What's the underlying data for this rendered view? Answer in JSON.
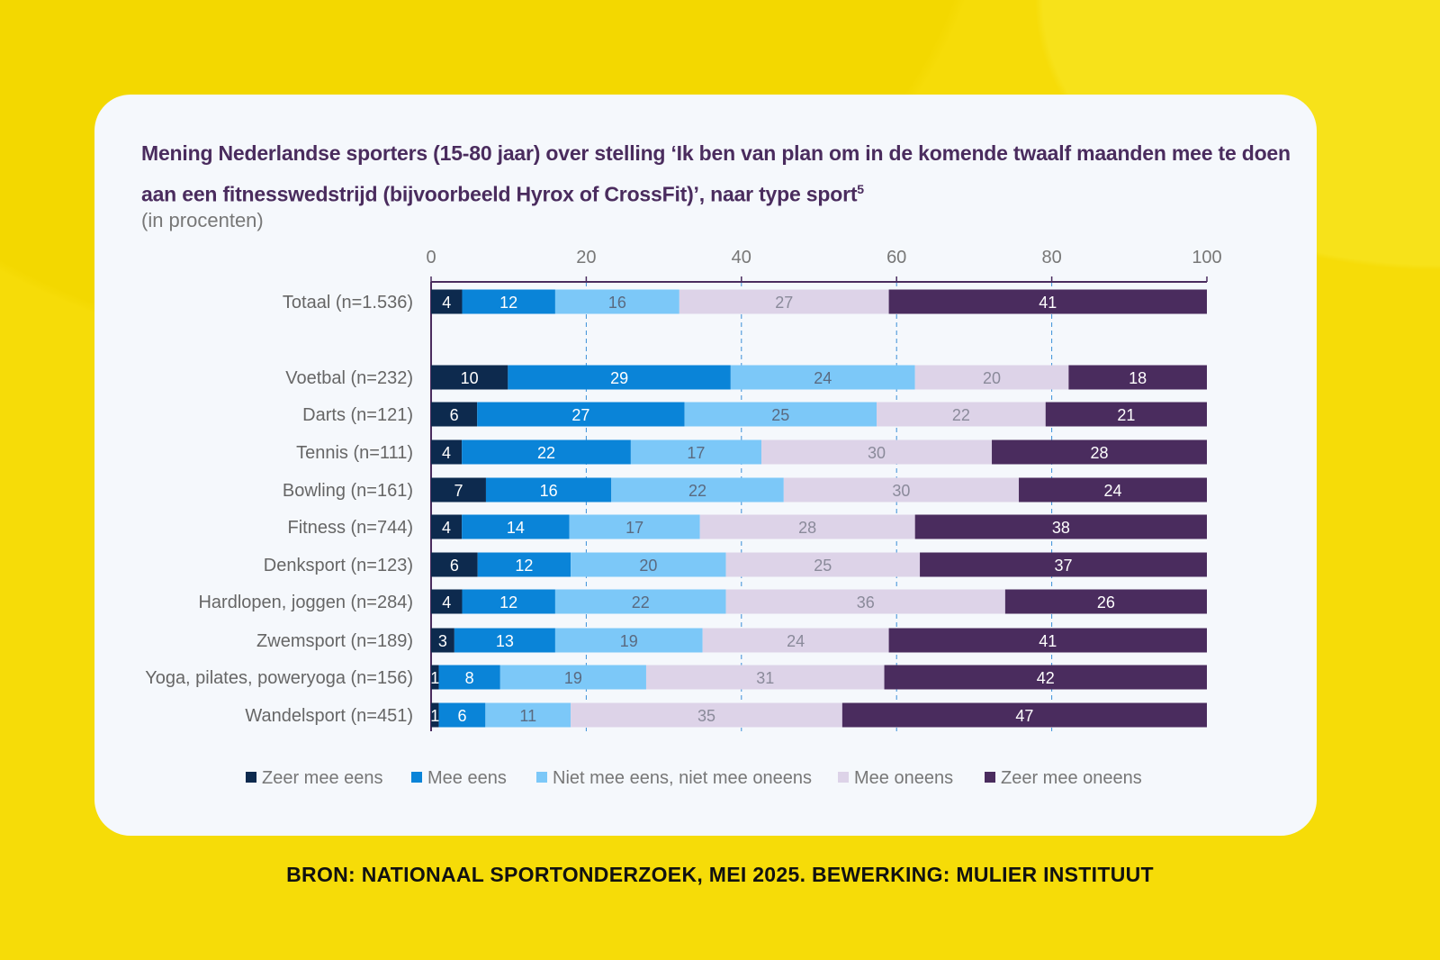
{
  "chart_data": {
    "type": "bar",
    "orientation": "horizontal",
    "stacked": true,
    "title": "Mening Nederlandse sporters (15-80 jaar) over stelling ‘Ik ben van plan om in de komende twaalf maanden mee te doen aan een fitnesswedstrijd (bijvoorbeeld Hyrox of CrossFit)’, naar type sport",
    "title_footnote": "5",
    "subtitle": "(in procenten)",
    "xlim": [
      0,
      100
    ],
    "xticks": [
      "0",
      "20",
      "40",
      "60",
      "80",
      "100"
    ],
    "grid": "vertical dashed",
    "legend_position": "bottom",
    "categories": [
      "Totaal (n=1.536)",
      "Voetbal (n=232)",
      "Darts (n=121)",
      "Tennis (n=111)",
      "Bowling (n=161)",
      "Fitness (n=744)",
      "Denksport (n=123)",
      "Hardlopen, joggen (n=284)",
      "Zwemsport (n=189)",
      "Yoga, pilates, poweryoga (n=156)",
      "Wandelsport (n=451)"
    ],
    "series": [
      {
        "name": "Zeer mee eens",
        "color": "#0d2a4e",
        "values": [
          4,
          10,
          6,
          4,
          7,
          4,
          6,
          4,
          3,
          1,
          1
        ]
      },
      {
        "name": "Mee eens",
        "color": "#0a84d8",
        "values": [
          12,
          29,
          27,
          22,
          16,
          14,
          12,
          12,
          13,
          8,
          6
        ]
      },
      {
        "name": "Niet mee eens, niet mee oneens",
        "color": "#7cc8f8",
        "values": [
          16,
          24,
          25,
          17,
          22,
          17,
          20,
          22,
          19,
          19,
          11
        ]
      },
      {
        "name": "Mee oneens",
        "color": "#ddd3e8",
        "values": [
          27,
          20,
          22,
          30,
          30,
          28,
          25,
          36,
          24,
          31,
          35
        ]
      },
      {
        "name": "Zeer mee oneens",
        "color": "#4a2c5e",
        "values": [
          41,
          18,
          21,
          28,
          24,
          38,
          37,
          26,
          41,
          42,
          47
        ]
      }
    ],
    "label_colors": [
      "#ffffff",
      "#ffffff",
      "#5a6a80",
      "#8a8a9a",
      "#ffffff"
    ]
  },
  "source": "BRON: NATIONAAL SPORTONDERZOEK, MEI 2025. BEWERKING: MULIER INSTITUUT"
}
